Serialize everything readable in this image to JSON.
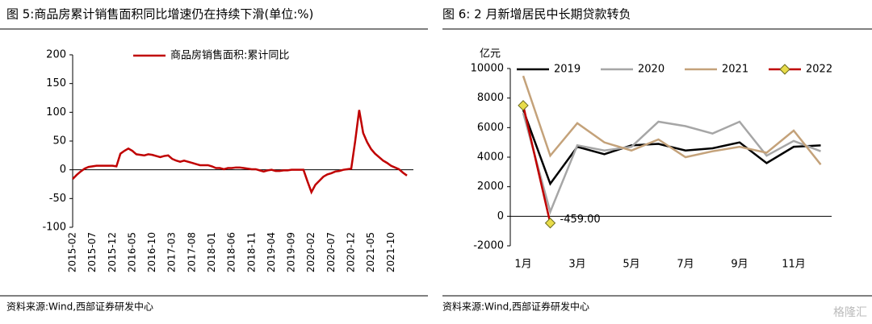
{
  "chart_data": [
    {
      "type": "line",
      "title": "图 5:商品房累计销售面积同比增速仍在持续下滑(单位:%)",
      "note": "资料来源:Wind,西部证券研发中心",
      "categories": [
        "2015-02",
        null,
        null,
        null,
        null,
        "2015-07",
        null,
        null,
        null,
        null,
        "2015-12",
        null,
        null,
        null,
        null,
        "2016-05",
        null,
        null,
        null,
        null,
        "2016-10",
        null,
        null,
        null,
        null,
        "2017-03",
        null,
        null,
        null,
        null,
        "2017-08",
        null,
        null,
        null,
        null,
        "2018-01",
        null,
        null,
        null,
        null,
        "2018-06",
        null,
        null,
        null,
        null,
        "2018-11",
        null,
        null,
        null,
        null,
        "2019-04",
        null,
        null,
        null,
        null,
        "2019-09",
        null,
        null,
        null,
        null,
        "2020-02",
        null,
        null,
        null,
        null,
        "2020-07",
        null,
        null,
        null,
        null,
        "2020-12",
        null,
        null,
        null,
        null,
        "2021-05",
        null,
        null,
        null,
        null,
        "2021-10",
        null,
        null,
        null,
        null
      ],
      "series": [
        {
          "name": "商品房销售面积:累计同比",
          "color": "#c00000",
          "values": [
            -16,
            -9,
            -3,
            2,
            5,
            6,
            7,
            7,
            7,
            7,
            7,
            6,
            28,
            33,
            37,
            33,
            27,
            26,
            25,
            27,
            26,
            24,
            22,
            24,
            25,
            19,
            16,
            14,
            16,
            14,
            12,
            10,
            8,
            8,
            8,
            6,
            3,
            3,
            1,
            3,
            3,
            4,
            4,
            3,
            2,
            1,
            1,
            -1,
            -3,
            -1,
            0,
            -2,
            -2,
            -1,
            -1,
            0,
            0,
            0,
            0,
            -20,
            -39,
            -26,
            -19,
            -12,
            -8,
            -6,
            -3,
            -2,
            0,
            1,
            2,
            50,
            104,
            64,
            48,
            36,
            28,
            22,
            16,
            12,
            7,
            4,
            1,
            -5,
            -10
          ]
        }
      ],
      "ylim": [
        -100,
        200
      ],
      "yticks": [
        -100,
        -50,
        0,
        50,
        100,
        150,
        200
      ],
      "grid": false,
      "legend": "top"
    },
    {
      "type": "line",
      "title": "图 6: 2 月新增居民中长期贷款转负",
      "note": "资料来源:Wind,西部证券研发中心",
      "y_label": "亿元",
      "categories": [
        "1月",
        null,
        "3月",
        null,
        "5月",
        null,
        "7月",
        null,
        "9月",
        null,
        "11月",
        null
      ],
      "series": [
        {
          "name": "2019",
          "color": "#000000",
          "values": [
            7200,
            2200,
            4700,
            4200,
            4800,
            4900,
            4450,
            4600,
            5000,
            3600,
            4700,
            4800
          ]
        },
        {
          "name": "2020",
          "color": "#a6a6a6",
          "values": [
            7000,
            300,
            4800,
            4450,
            4700,
            6400,
            6100,
            5600,
            6400,
            4100,
            5100,
            4400
          ]
        },
        {
          "name": "2021",
          "color": "#c4a27a",
          "values": [
            9500,
            4100,
            6300,
            5000,
            4450,
            5200,
            4000,
            4400,
            4700,
            4300,
            5800,
            3500
          ]
        },
        {
          "name": "2022",
          "color": "#c00000",
          "marker": "diamond",
          "marker_color": "#e8dc4a",
          "values": [
            7500,
            -459,
            null,
            null,
            null,
            null,
            null,
            null,
            null,
            null,
            null,
            null
          ],
          "value_labels": [
            null,
            "-459.00",
            null,
            null,
            null,
            null,
            null,
            null,
            null,
            null,
            null,
            null
          ]
        }
      ],
      "ylim": [
        -2000,
        10000
      ],
      "yticks": [
        -2000,
        0,
        2000,
        4000,
        6000,
        8000,
        10000
      ],
      "grid": false,
      "legend": "top"
    }
  ],
  "watermark": "格隆汇"
}
